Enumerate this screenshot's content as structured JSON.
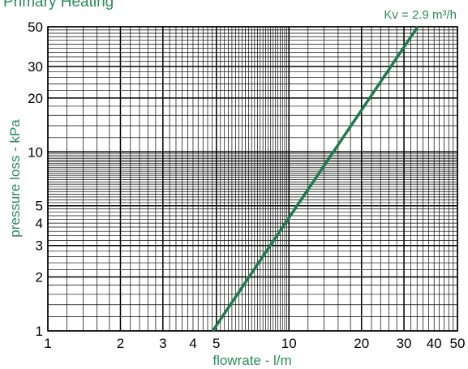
{
  "title": "Primary Heating",
  "colors": {
    "accent": "#2a8a5c",
    "line": "#1f7a4f",
    "grid": "#000000"
  },
  "chart_data": {
    "type": "line",
    "title": "Primary Heating",
    "xlabel": "flowrate - l/m",
    "ylabel": "pressure loss - kPa",
    "x_scale": "log",
    "y_scale": "log",
    "xlim": [
      1,
      50
    ],
    "ylim": [
      1,
      50
    ],
    "grid": true,
    "x_ticks": [
      1,
      2,
      3,
      4,
      5,
      10,
      20,
      30,
      40,
      50
    ],
    "y_ticks": [
      1,
      2,
      3,
      4,
      5,
      10,
      20,
      30,
      50
    ],
    "series": [
      {
        "name": "Kv = 2.9 m³/h",
        "x": [
          4.83,
          34.2
        ],
        "y": [
          1,
          50
        ]
      }
    ]
  }
}
